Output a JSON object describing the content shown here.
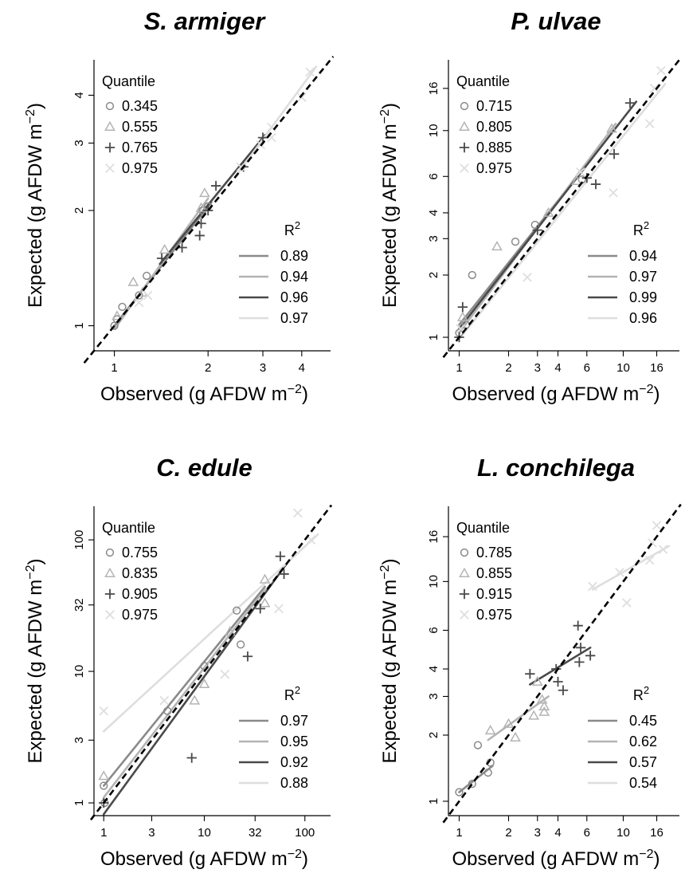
{
  "figure": {
    "colors": {
      "q1": "#8a8a8a",
      "q2": "#b4b4b4",
      "q3": "#4a4a4a",
      "q4": "#dedede",
      "axis": "#000000",
      "identity": "#000000"
    },
    "markers": [
      "circle",
      "triangle",
      "plus",
      "cross"
    ],
    "legend_quantile_title": "Quantile",
    "legend_r2_title": "R",
    "legend_r2_sup": "2",
    "identity_line": "dashed 1:1"
  },
  "chart_data": [
    {
      "type": "scatter",
      "scale": "log",
      "title": "S. armiger",
      "xlabel": "Observed (g AFDW m",
      "ylabel": "Expected (g AFDW m",
      "label_sup": "−2",
      "label_close": ")",
      "xlim": [
        0.86,
        4.95
      ],
      "ylim": [
        0.86,
        4.95
      ],
      "xticks": [
        1,
        2,
        3,
        4
      ],
      "yticks": [
        1,
        2,
        3,
        4
      ],
      "quantiles": [
        "0.345",
        "0.555",
        "0.765",
        "0.975"
      ],
      "r2": [
        "0.89",
        "0.94",
        "0.96",
        "0.97"
      ],
      "series": [
        {
          "points": [
            [
              1.0,
              1.0
            ],
            [
              1.02,
              1.04
            ],
            [
              1.06,
              1.12
            ],
            [
              1.2,
              1.2
            ],
            [
              1.27,
              1.35
            ],
            [
              1.92,
              2.0
            ],
            [
              2.0,
              2.05
            ]
          ],
          "fit": [
            [
              1.0,
              1.0
            ],
            [
              2.05,
              2.1
            ]
          ]
        },
        {
          "points": [
            [
              1.02,
              1.06
            ],
            [
              1.15,
              1.3
            ],
            [
              1.23,
              1.22
            ],
            [
              1.45,
              1.58
            ],
            [
              1.9,
              2.03
            ],
            [
              1.95,
              2.22
            ]
          ],
          "fit": [
            [
              1.0,
              0.98
            ],
            [
              2.0,
              2.15
            ]
          ]
        },
        {
          "points": [
            [
              1.42,
              1.5
            ],
            [
              1.65,
              1.6
            ],
            [
              1.88,
              1.72
            ],
            [
              1.9,
              1.85
            ],
            [
              2.0,
              2.0
            ],
            [
              2.12,
              2.32
            ],
            [
              2.6,
              2.6
            ],
            [
              3.0,
              3.1
            ]
          ],
          "fit": [
            [
              1.4,
              1.45
            ],
            [
              3.05,
              3.15
            ]
          ]
        },
        {
          "points": [
            [
              1.2,
              1.15
            ],
            [
              1.28,
              1.2
            ],
            [
              2.55,
              2.6
            ],
            [
              2.95,
              2.97
            ],
            [
              3.2,
              3.1
            ],
            [
              3.2,
              3.3
            ],
            [
              4.0,
              3.95
            ],
            [
              4.25,
              4.6
            ]
          ],
          "fit": [
            [
              2.45,
              2.45
            ],
            [
              4.45,
              4.75
            ]
          ]
        }
      ]
    },
    {
      "type": "scatter",
      "scale": "log",
      "title": "P. ulvae",
      "xlabel": "Observed (g AFDW m",
      "ylabel": "Expected (g AFDW m",
      "label_sup": "−2",
      "label_close": ")",
      "xlim": [
        0.86,
        22
      ],
      "ylim": [
        0.86,
        22
      ],
      "xticks": [
        1,
        2,
        3,
        4,
        6,
        10,
        16
      ],
      "yticks": [
        1,
        2,
        3,
        4,
        6,
        10,
        16
      ],
      "quantiles": [
        "0.715",
        "0.805",
        "0.885",
        "0.975"
      ],
      "r2": [
        "0.94",
        "0.97",
        "0.99",
        "0.96"
      ],
      "series": [
        {
          "points": [
            [
              1.0,
              1.05
            ],
            [
              1.1,
              1.15
            ],
            [
              1.2,
              2.0
            ],
            [
              2.2,
              2.9
            ],
            [
              2.9,
              3.5
            ],
            [
              5.6,
              5.8
            ]
          ],
          "fit": [
            [
              1.0,
              1.15
            ],
            [
              7.0,
              8.0
            ]
          ]
        },
        {
          "points": [
            [
              1.05,
              1.25
            ],
            [
              1.7,
              2.75
            ],
            [
              3.5,
              4.0
            ],
            [
              5.2,
              5.7
            ],
            [
              8.5,
              10.2
            ]
          ],
          "fit": [
            [
              1.0,
              1.05
            ],
            [
              9.0,
              10.8
            ]
          ]
        },
        {
          "points": [
            [
              1.0,
              1.0
            ],
            [
              1.05,
              1.4
            ],
            [
              3.0,
              3.3
            ],
            [
              6.0,
              5.9
            ],
            [
              6.8,
              5.5
            ],
            [
              8.8,
              7.7
            ],
            [
              11.0,
              13.6
            ]
          ],
          "fit": [
            [
              1.0,
              1.1
            ],
            [
              12.0,
              13.8
            ]
          ]
        },
        {
          "points": [
            [
              1.02,
              1.1
            ],
            [
              2.6,
              1.95
            ],
            [
              5.5,
              6.3
            ],
            [
              8.7,
              5.0
            ],
            [
              14.5,
              10.8
            ],
            [
              15.5,
              16.0
            ],
            [
              17.0,
              19.5
            ]
          ],
          "fit": [
            [
              1.0,
              0.98
            ],
            [
              18.0,
              16.8
            ]
          ]
        }
      ]
    },
    {
      "type": "scatter",
      "scale": "log",
      "title": "C. edule",
      "xlabel": "Observed (g AFDW m",
      "ylabel": "Expected (g AFDW m",
      "label_sup": "−2",
      "label_close": ")",
      "xlim": [
        0.8,
        180
      ],
      "ylim": [
        0.8,
        180
      ],
      "xticks": [
        1,
        3,
        10,
        32,
        100
      ],
      "yticks": [
        1,
        3,
        10,
        32,
        100
      ],
      "quantiles": [
        "0.755",
        "0.835",
        "0.905",
        "0.975"
      ],
      "r2": [
        "0.97",
        "0.95",
        "0.92",
        "0.88"
      ],
      "series": [
        {
          "points": [
            [
              1.0,
              1.35
            ],
            [
              1.02,
              1.0
            ],
            [
              4.3,
              5.0
            ],
            [
              10.0,
              11.0
            ],
            [
              21.0,
              29.0
            ],
            [
              23.0,
              16.0
            ]
          ],
          "fit": [
            [
              1.0,
              1.35
            ],
            [
              40.0,
              44.0
            ]
          ]
        },
        {
          "points": [
            [
              1.0,
              1.6
            ],
            [
              8.0,
              6.0
            ],
            [
              10.0,
              8.0
            ],
            [
              18.0,
              20.0
            ],
            [
              40.0,
              50.0
            ],
            [
              40.0,
              33.0
            ]
          ],
          "fit": [
            [
              1.0,
              1.1
            ],
            [
              40.0,
              42.0
            ]
          ]
        },
        {
          "points": [
            [
              1.0,
              1.0
            ],
            [
              7.5,
              2.2
            ],
            [
              27.0,
              13.0
            ],
            [
              36.0,
              30.0
            ],
            [
              57.0,
              75.0
            ],
            [
              62.0,
              55.0
            ]
          ],
          "fit": [
            [
              1.0,
              0.82
            ],
            [
              65.0,
              65.0
            ]
          ]
        },
        {
          "points": [
            [
              1.0,
              5.0
            ],
            [
              4.0,
              6.0
            ],
            [
              16.0,
              9.5
            ],
            [
              55.0,
              30.0
            ],
            [
              85.0,
              160.0
            ],
            [
              115.0,
              100.0
            ]
          ],
          "fit": [
            [
              1.0,
              3.5
            ],
            [
              135.0,
              110.0
            ]
          ]
        }
      ]
    },
    {
      "type": "scatter",
      "scale": "log",
      "title": "L. conchilega",
      "xlabel": "Observed (g AFDW m",
      "ylabel": "Expected (g AFDW m",
      "label_sup": "−2",
      "label_close": ")",
      "xlim": [
        0.86,
        22
      ],
      "ylim": [
        0.86,
        22
      ],
      "xticks": [
        1,
        2,
        3,
        4,
        6,
        10,
        16
      ],
      "yticks": [
        1,
        2,
        3,
        4,
        6,
        10,
        16
      ],
      "quantiles": [
        "0.785",
        "0.855",
        "0.915",
        "0.975"
      ],
      "r2": [
        "0.45",
        "0.62",
        "0.57",
        "0.54"
      ],
      "series": [
        {
          "points": [
            [
              1.0,
              1.1
            ],
            [
              1.2,
              1.2
            ],
            [
              1.3,
              1.8
            ],
            [
              1.5,
              1.35
            ],
            [
              1.55,
              1.5
            ]
          ],
          "fit": [
            [
              1.0,
              1.1
            ],
            [
              1.6,
              1.45
            ]
          ]
        },
        {
          "points": [
            [
              1.55,
              2.1
            ],
            [
              2.0,
              2.25
            ],
            [
              2.2,
              1.95
            ],
            [
              2.85,
              2.45
            ],
            [
              3.0,
              3.5
            ],
            [
              3.2,
              2.9
            ],
            [
              3.3,
              2.55
            ],
            [
              3.3,
              2.7
            ]
          ],
          "fit": [
            [
              1.5,
              1.9
            ],
            [
              3.5,
              3.0
            ]
          ]
        },
        {
          "points": [
            [
              2.7,
              3.8
            ],
            [
              3.9,
              4.0
            ],
            [
              4.0,
              3.5
            ],
            [
              4.3,
              3.2
            ],
            [
              5.3,
              6.3
            ],
            [
              5.4,
              4.3
            ],
            [
              5.5,
              5.0
            ],
            [
              6.3,
              4.6
            ]
          ],
          "fit": [
            [
              2.7,
              3.4
            ],
            [
              6.3,
              5.0
            ]
          ]
        },
        {
          "points": [
            [
              6.5,
              9.5
            ],
            [
              9.5,
              11.0
            ],
            [
              10.5,
              8.0
            ],
            [
              14.5,
              12.5
            ],
            [
              15.0,
              15.0
            ],
            [
              16.0,
              18.0
            ],
            [
              17.5,
              14.0
            ]
          ],
          "fit": [
            [
              6.5,
              9.2
            ],
            [
              19.0,
              14.5
            ]
          ]
        }
      ]
    }
  ]
}
